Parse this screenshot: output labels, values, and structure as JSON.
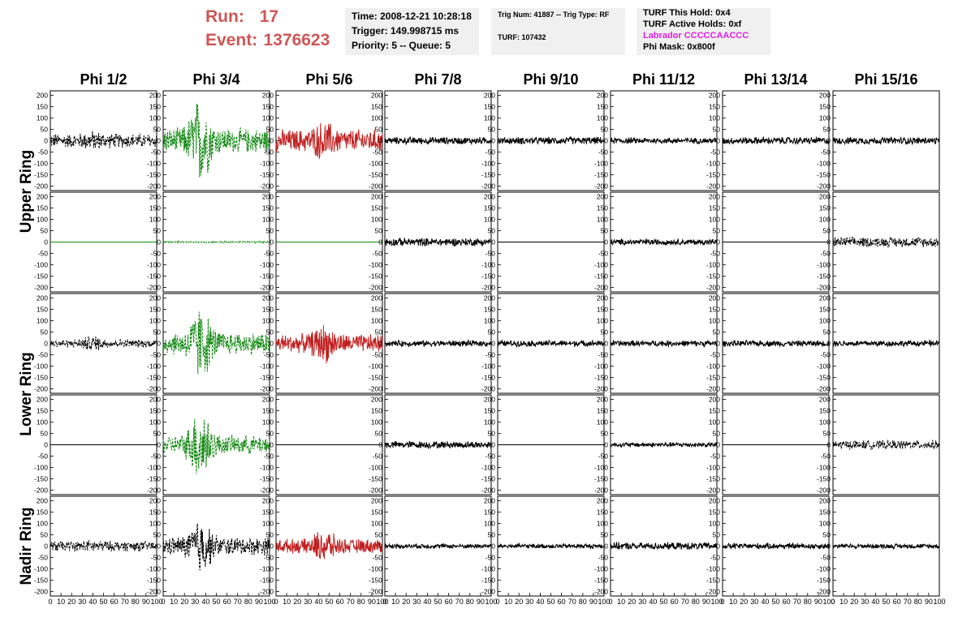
{
  "header": {
    "run_label": "Run:",
    "run_value": "17",
    "event_label": "Event:",
    "event_value": "1376623",
    "time": "Time: 2008-12-21 10:28:18",
    "trigger": "Trigger: 149.998715 ms",
    "priority": "Priority: 5 -- Queue: 5",
    "trig_num": "Trig Num: 41887 -- Trig Type: RF",
    "turf": "TURF: 107432",
    "turf_hold": "TURF This Hold: 0x4",
    "turf_active": "TURF Active Holds: 0xf",
    "labrador": "Labrador CCCCCAACCC",
    "phi_mask": "Phi Mask: 0x800f"
  },
  "colors": {
    "run_text": "#cf5656",
    "labrador_text": "#e020e0",
    "info_bg": "#f0f0f0",
    "trace_black": "#000000",
    "trace_green": "#118811",
    "trace_red": "#c02020"
  },
  "chart_data": {
    "type": "line",
    "title": "",
    "columns": [
      "Phi 1/2",
      "Phi 3/4",
      "Phi 5/6",
      "Phi 7/8",
      "Phi 9/10",
      "Phi 11/12",
      "Phi 13/14",
      "Phi 15/16"
    ],
    "ring_labels": [
      "Upper Ring",
      "Lower Ring",
      "Nadir Ring"
    ],
    "ylim": [
      -220,
      220
    ],
    "yticks": [
      -200,
      -150,
      -100,
      -50,
      0,
      50,
      100,
      150,
      200
    ],
    "xlim": [
      0,
      100
    ],
    "xticks": [
      0,
      10,
      20,
      30,
      40,
      50,
      60,
      70,
      80,
      90,
      100
    ],
    "grid": false,
    "trace_grid": [
      [
        {
          "color": "black",
          "style": "dashed",
          "amp": 35,
          "burst": 40,
          "peak": 50
        },
        {
          "color": "green",
          "style": "dashed",
          "amp": 60,
          "burst": 35,
          "peak": 220
        },
        {
          "color": "red",
          "style": "solid",
          "amp": 55,
          "burst": 45,
          "peak": 100
        },
        {
          "color": "black",
          "style": "solid",
          "amp": 18,
          "burst": 0,
          "peak": 0
        },
        {
          "color": "black",
          "style": "solid",
          "amp": 18,
          "burst": 0,
          "peak": 0
        },
        {
          "color": "black",
          "style": "solid",
          "amp": 15,
          "burst": 0,
          "peak": 0
        },
        {
          "color": "black",
          "style": "solid",
          "amp": 18,
          "burst": 0,
          "peak": 0
        },
        {
          "color": "black",
          "style": "solid",
          "amp": 18,
          "burst": 0,
          "peak": 0
        }
      ],
      [
        {
          "color": "green",
          "style": "solid",
          "amp": 0,
          "burst": 0,
          "peak": 0
        },
        {
          "color": "green",
          "style": "dashed",
          "amp": 4,
          "burst": 0,
          "peak": 0
        },
        {
          "color": "green",
          "style": "solid",
          "amp": 0,
          "burst": 0,
          "peak": 0
        },
        {
          "color": "black",
          "style": "solid",
          "amp": 20,
          "burst": 0,
          "peak": 0
        },
        {
          "color": "black",
          "style": "solid",
          "amp": 0,
          "burst": 0,
          "peak": 0
        },
        {
          "color": "black",
          "style": "solid",
          "amp": 15,
          "burst": 0,
          "peak": 0
        },
        {
          "color": "black",
          "style": "solid",
          "amp": 0,
          "burst": 0,
          "peak": 0
        },
        {
          "color": "black",
          "style": "dashed",
          "amp": 25,
          "burst": 0,
          "peak": 0
        }
      ],
      [
        {
          "color": "black",
          "style": "dashed",
          "amp": 20,
          "burst": 40,
          "peak": 40
        },
        {
          "color": "green",
          "style": "dashed",
          "amp": 55,
          "burst": 35,
          "peak": 190
        },
        {
          "color": "red",
          "style": "solid",
          "amp": 45,
          "burst": 45,
          "peak": 100
        },
        {
          "color": "black",
          "style": "solid",
          "amp": 15,
          "burst": 0,
          "peak": 0
        },
        {
          "color": "black",
          "style": "solid",
          "amp": 15,
          "burst": 0,
          "peak": 0
        },
        {
          "color": "black",
          "style": "solid",
          "amp": 15,
          "burst": 0,
          "peak": 0
        },
        {
          "color": "black",
          "style": "solid",
          "amp": 15,
          "burst": 0,
          "peak": 0
        },
        {
          "color": "black",
          "style": "solid",
          "amp": 15,
          "burst": 0,
          "peak": 0
        }
      ],
      [
        {
          "color": "black",
          "style": "solid",
          "amp": 0,
          "burst": 0,
          "peak": 0
        },
        {
          "color": "green",
          "style": "dashed",
          "amp": 45,
          "burst": 35,
          "peak": 200
        },
        {
          "color": "black",
          "style": "solid",
          "amp": 0,
          "burst": 0,
          "peak": 0
        },
        {
          "color": "black",
          "style": "solid",
          "amp": 18,
          "burst": 0,
          "peak": 0
        },
        {
          "color": "black",
          "style": "solid",
          "amp": 0,
          "burst": 0,
          "peak": 0
        },
        {
          "color": "black",
          "style": "solid",
          "amp": 12,
          "burst": 0,
          "peak": 0
        },
        {
          "color": "black",
          "style": "solid",
          "amp": 0,
          "burst": 0,
          "peak": 0
        },
        {
          "color": "black",
          "style": "dashed",
          "amp": 22,
          "burst": 0,
          "peak": 0
        }
      ],
      [
        {
          "color": "black",
          "style": "dashed",
          "amp": 25,
          "burst": 40,
          "peak": 30
        },
        {
          "color": "black",
          "style": "dashed",
          "amp": 45,
          "burst": 35,
          "peak": 150
        },
        {
          "color": "red",
          "style": "solid",
          "amp": 35,
          "burst": 45,
          "peak": 90
        },
        {
          "color": "black",
          "style": "solid",
          "amp": 12,
          "burst": 0,
          "peak": 0
        },
        {
          "color": "black",
          "style": "solid",
          "amp": 12,
          "burst": 0,
          "peak": 0
        },
        {
          "color": "black",
          "style": "solid",
          "amp": 18,
          "burst": 0,
          "peak": 0
        },
        {
          "color": "black",
          "style": "solid",
          "amp": 15,
          "burst": 0,
          "peak": 0
        },
        {
          "color": "black",
          "style": "solid",
          "amp": 12,
          "burst": 0,
          "peak": 0
        }
      ]
    ]
  }
}
